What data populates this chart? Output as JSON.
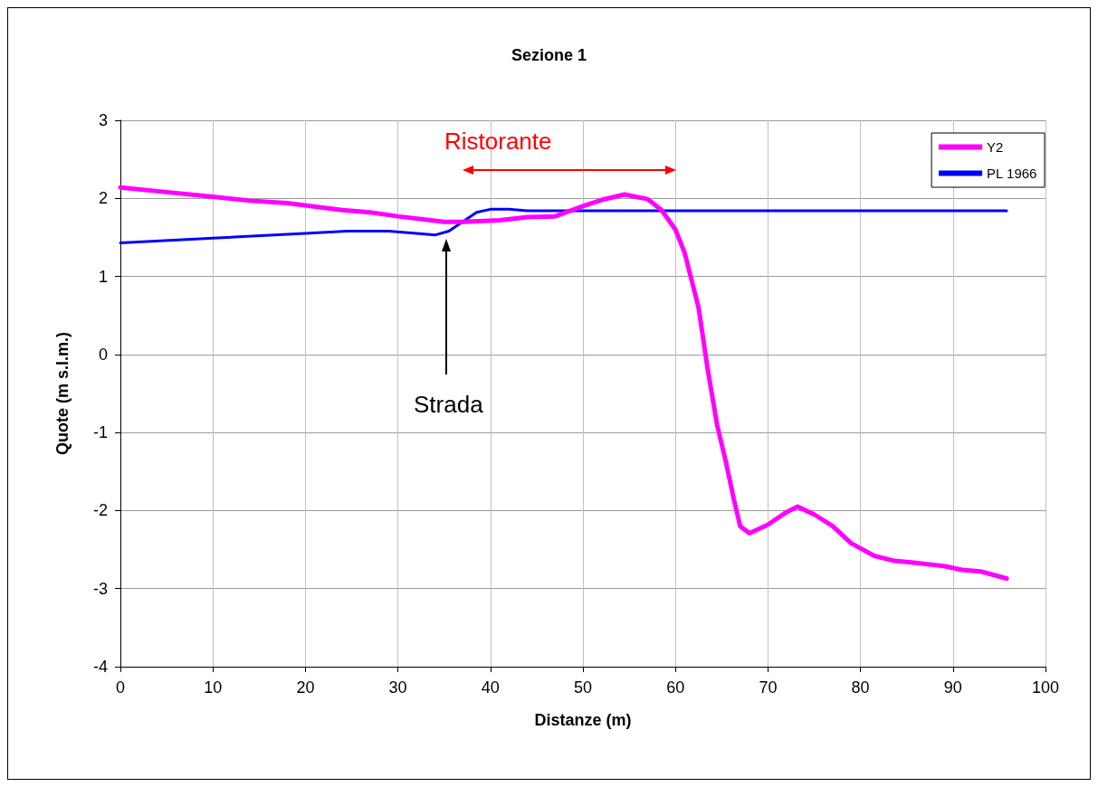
{
  "chart_data": {
    "type": "line",
    "title": "Sezione 1",
    "xlabel": "Distanze (m)",
    "ylabel": "Quote (m s.l.m.)",
    "series": [
      {
        "name": "Y2",
        "color": "#ff00ff",
        "x": [
          0,
          5,
          10,
          14,
          18,
          24,
          27,
          30,
          35,
          37,
          41,
          44,
          47,
          50,
          52,
          54.5,
          57,
          58.5,
          60,
          61,
          62.5,
          63.5,
          64.5,
          65.5,
          66.3,
          67,
          68,
          70,
          72,
          73.2,
          75,
          77,
          79,
          81.5,
          83.5,
          86,
          89,
          91,
          93,
          95.8
        ],
        "values": [
          2.14,
          2.08,
          2.02,
          1.97,
          1.94,
          1.85,
          1.82,
          1.77,
          1.7,
          1.7,
          1.72,
          1.76,
          1.77,
          1.9,
          1.98,
          2.05,
          1.99,
          1.85,
          1.6,
          1.3,
          0.6,
          -0.2,
          -0.9,
          -1.4,
          -1.85,
          -2.2,
          -2.29,
          -2.18,
          -2.02,
          -1.95,
          -2.05,
          -2.2,
          -2.42,
          -2.58,
          -2.64,
          -2.67,
          -2.71,
          -2.76,
          -2.78,
          -2.87
        ]
      },
      {
        "name": "PL 1966",
        "color": "#0000ff",
        "x": [
          0,
          10,
          20,
          24.5,
          29,
          32,
          34,
          35.5,
          37,
          38.5,
          40,
          42,
          44,
          95.8
        ],
        "values": [
          1.43,
          1.49,
          1.55,
          1.58,
          1.58,
          1.55,
          1.53,
          1.58,
          1.7,
          1.82,
          1.86,
          1.86,
          1.84,
          1.84
        ]
      }
    ],
    "annotations": [
      "Strada",
      "Ristorante"
    ],
    "xlim": [
      0,
      100
    ],
    "xticks": [
      0,
      10,
      20,
      30,
      40,
      50,
      60,
      70,
      80,
      90,
      100
    ],
    "ylim": [
      -4,
      3
    ],
    "yticks": [
      -4,
      -3,
      -2,
      -1,
      0,
      1,
      2,
      3
    ],
    "grid": true,
    "legend": "top right",
    "marker": "none",
    "line_style": "solid"
  }
}
